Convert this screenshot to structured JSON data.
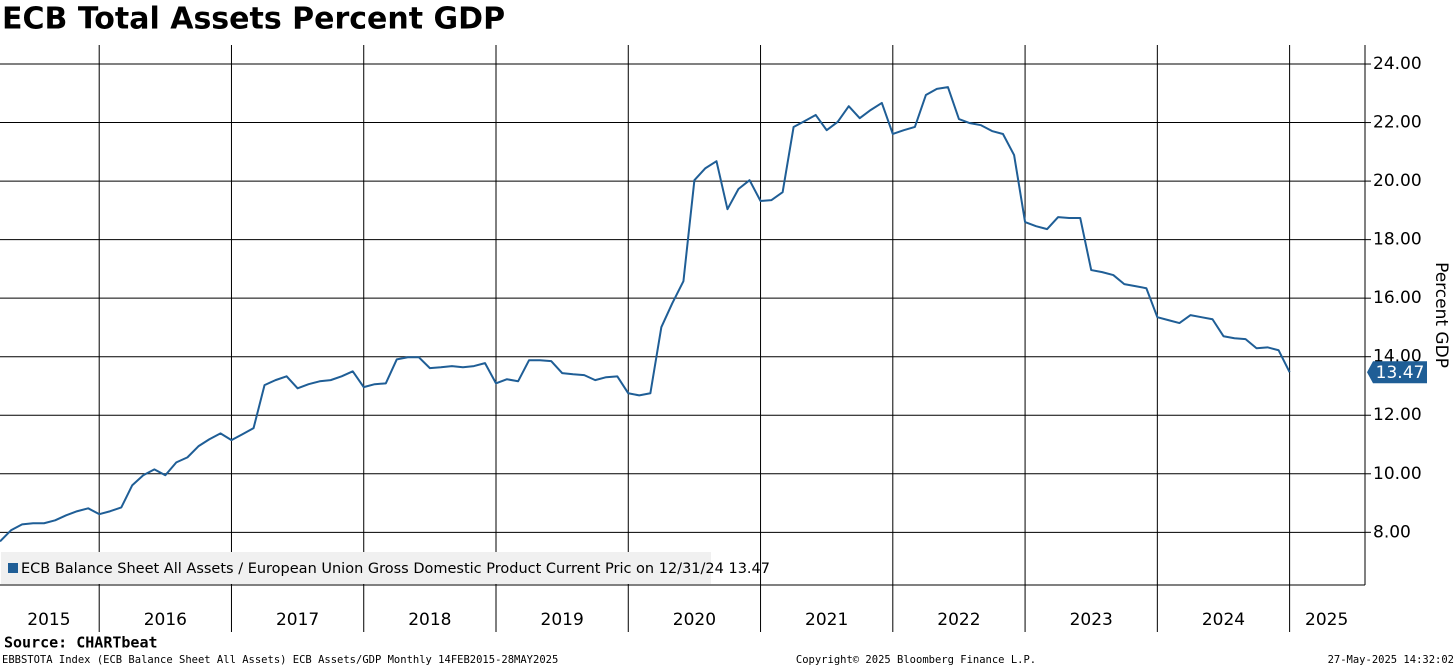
{
  "chart_data": {
    "type": "line",
    "title": "ECB Total Assets Percent GDP",
    "y_label": "Percent GDP",
    "source": "Source: CHARTbeat",
    "footer_left": "EBBSTOTA Index (ECB Balance Sheet All Assets) ECB Assets/GDP  Monthly 14FEB2015-28MAY2025",
    "footer_center": "Copyright© 2025 Bloomberg Finance L.P.",
    "footer_right": "27-May-2025 14:32:02",
    "xlim": [
      2015.25,
      2025.57
    ],
    "xgrid": [
      2016,
      2017,
      2018,
      2019,
      2020,
      2021,
      2022,
      2023,
      2024,
      2025
    ],
    "xticks": [
      {
        "value": 2015.62,
        "label": "2015"
      },
      {
        "value": 2016.5,
        "label": "2016"
      },
      {
        "value": 2017.5,
        "label": "2017"
      },
      {
        "value": 2018.5,
        "label": "2018"
      },
      {
        "value": 2019.5,
        "label": "2019"
      },
      {
        "value": 2020.5,
        "label": "2020"
      },
      {
        "value": 2021.5,
        "label": "2021"
      },
      {
        "value": 2022.5,
        "label": "2022"
      },
      {
        "value": 2023.5,
        "label": "2023"
      },
      {
        "value": 2024.5,
        "label": "2024"
      },
      {
        "value": 2025.28,
        "label": "2025"
      }
    ],
    "ylim": [
      6.2,
      24.65
    ],
    "yticks": [
      {
        "value": 8,
        "label": "8.00"
      },
      {
        "value": 10,
        "label": "10.00"
      },
      {
        "value": 12,
        "label": "12.00"
      },
      {
        "value": 14,
        "label": "14.00"
      },
      {
        "value": 16,
        "label": "16.00"
      },
      {
        "value": 18,
        "label": "18.00"
      },
      {
        "value": 20,
        "label": "20.00"
      },
      {
        "value": 22,
        "label": "22.00"
      },
      {
        "value": 24,
        "label": "24.00"
      }
    ],
    "grid": true,
    "legend_position": "lower left",
    "x": [
      2015.25,
      2015.333,
      2015.417,
      2015.5,
      2015.583,
      2015.667,
      2015.75,
      2015.833,
      2015.917,
      2016,
      2016.083,
      2016.167,
      2016.25,
      2016.333,
      2016.417,
      2016.5,
      2016.583,
      2016.667,
      2016.75,
      2016.833,
      2016.917,
      2017,
      2017.083,
      2017.167,
      2017.25,
      2017.333,
      2017.417,
      2017.5,
      2017.583,
      2017.667,
      2017.75,
      2017.833,
      2017.917,
      2018,
      2018.083,
      2018.167,
      2018.25,
      2018.333,
      2018.417,
      2018.5,
      2018.583,
      2018.667,
      2018.75,
      2018.833,
      2018.917,
      2019,
      2019.083,
      2019.167,
      2019.25,
      2019.333,
      2019.417,
      2019.5,
      2019.583,
      2019.667,
      2019.75,
      2019.833,
      2019.917,
      2020,
      2020.083,
      2020.167,
      2020.25,
      2020.333,
      2020.417,
      2020.5,
      2020.583,
      2020.667,
      2020.75,
      2020.833,
      2020.917,
      2021,
      2021.083,
      2021.167,
      2021.25,
      2021.333,
      2021.417,
      2021.5,
      2021.583,
      2021.667,
      2021.75,
      2021.833,
      2021.917,
      2022,
      2022.083,
      2022.167,
      2022.25,
      2022.333,
      2022.417,
      2022.5,
      2022.583,
      2022.667,
      2022.75,
      2022.833,
      2022.917,
      2023,
      2023.083,
      2023.167,
      2023.25,
      2023.333,
      2023.417,
      2023.5,
      2023.583,
      2023.667,
      2023.75,
      2023.833,
      2023.917,
      2024,
      2024.083,
      2024.167,
      2024.25,
      2024.333,
      2024.417,
      2024.5,
      2024.583,
      2024.667,
      2024.75,
      2024.833,
      2024.917,
      2025
    ],
    "series": [
      {
        "name": "ECB Balance Sheet All Assets / European Union Gross Domestic Product Current Pric on 12/31/24 13.47",
        "color": "#1f5e96",
        "values": [
          7.69,
          8.07,
          8.27,
          8.31,
          8.31,
          8.41,
          8.58,
          8.72,
          8.82,
          8.62,
          8.72,
          8.85,
          9.61,
          9.95,
          10.15,
          9.95,
          10.39,
          10.56,
          10.94,
          11.18,
          11.38,
          11.15,
          11.35,
          11.56,
          13.03,
          13.2,
          13.33,
          12.92,
          13.06,
          13.16,
          13.2,
          13.33,
          13.5,
          12.96,
          13.06,
          13.09,
          13.91,
          13.98,
          13.98,
          13.61,
          13.64,
          13.68,
          13.64,
          13.68,
          13.78,
          13.09,
          13.23,
          13.16,
          13.88,
          13.88,
          13.85,
          13.44,
          13.4,
          13.37,
          13.2,
          13.3,
          13.33,
          12.75,
          12.68,
          12.75,
          15.01,
          15.83,
          16.58,
          20.03,
          20.44,
          20.68,
          19.04,
          19.73,
          20.03,
          19.32,
          19.35,
          19.62,
          21.85,
          22.05,
          22.26,
          21.74,
          22.02,
          22.56,
          22.15,
          22.43,
          22.67,
          21.61,
          21.74,
          21.85,
          22.94,
          23.15,
          23.21,
          22.12,
          21.98,
          21.91,
          21.71,
          21.61,
          20.89,
          18.6,
          18.46,
          18.36,
          18.77,
          18.74,
          18.74,
          16.96,
          16.89,
          16.79,
          16.48,
          16.41,
          16.34,
          15.35,
          15.25,
          15.15,
          15.42,
          15.35,
          15.28,
          14.7,
          14.63,
          14.6,
          14.29,
          14.32,
          14.22,
          13.47
        ]
      }
    ]
  }
}
